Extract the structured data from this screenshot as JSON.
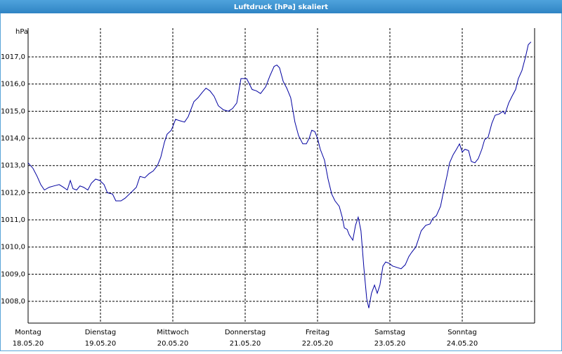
{
  "chart_data": {
    "type": "line",
    "title": "Luftdruck [hPa] skaliert",
    "y_label": "hPa",
    "x": [
      0,
      1.6,
      3.0,
      4.2,
      5.4,
      7.0,
      8.6,
      10.3,
      11.7,
      13.0,
      14.0,
      14.9,
      16.1,
      17.2,
      18.4,
      19.8,
      21.0,
      22.4,
      23.8,
      25.2,
      26.3,
      28.0,
      29.1,
      30.8,
      32.2,
      33.6,
      35.0,
      35.9,
      37.1,
      38.7,
      40.1,
      41.5,
      42.9,
      44.0,
      45.2,
      46.1,
      47.5,
      48.9,
      50.3,
      51.9,
      53.1,
      55.0,
      56.4,
      57.8,
      59.0,
      60.3,
      61.7,
      63.1,
      64.8,
      66.4,
      67.8,
      69.2,
      70.6,
      72.5,
      74.3,
      75.7,
      77.1,
      78.8,
      80.2,
      81.6,
      82.5,
      83.4,
      84.6,
      85.8,
      87.1,
      88.5,
      89.7,
      91.1,
      92.3,
      93.2,
      94.1,
      95.1,
      96.0,
      96.9,
      98.3,
      99.5,
      100.7,
      101.8,
      103.2,
      104.2,
      104.9,
      105.8,
      106.5,
      107.7,
      108.6,
      109.5,
      110.4,
      111.4,
      112.3,
      113.0,
      113.9,
      114.9,
      115.8,
      116.7,
      117.7,
      118.6,
      119.8,
      120.9,
      122.3,
      123.7,
      125.1,
      126.3,
      127.2,
      128.6,
      129.5,
      130.4,
      131.9,
      133.3,
      134.2,
      135.4,
      136.8,
      137.9,
      138.9,
      139.8,
      141.0,
      142.1,
      143.1,
      144.0,
      144.9,
      146.1,
      147.0,
      148.2,
      149.3,
      150.5,
      151.4,
      152.6,
      153.8,
      154.9,
      156.3,
      157.5,
      158.2,
      159.4,
      160.5,
      161.7,
      162.6,
      163.8,
      165.0,
      165.9,
      166.8
    ],
    "values": [
      1013.1,
      1012.9,
      1012.6,
      1012.3,
      1012.1,
      1012.2,
      1012.25,
      1012.3,
      1012.2,
      1012.1,
      1012.45,
      1012.15,
      1012.1,
      1012.25,
      1012.2,
      1012.1,
      1012.35,
      1012.5,
      1012.45,
      1012.3,
      1012.0,
      1011.95,
      1011.7,
      1011.7,
      1011.8,
      1011.95,
      1012.1,
      1012.2,
      1012.6,
      1012.55,
      1012.7,
      1012.8,
      1013.0,
      1013.3,
      1013.85,
      1014.15,
      1014.3,
      1014.7,
      1014.65,
      1014.6,
      1014.8,
      1015.35,
      1015.5,
      1015.7,
      1015.85,
      1015.75,
      1015.55,
      1015.2,
      1015.05,
      1015.0,
      1015.1,
      1015.3,
      1016.2,
      1016.2,
      1015.8,
      1015.75,
      1015.65,
      1015.9,
      1016.3,
      1016.65,
      1016.7,
      1016.6,
      1016.1,
      1015.85,
      1015.5,
      1014.6,
      1014.1,
      1013.8,
      1013.8,
      1014.0,
      1014.3,
      1014.25,
      1014.0,
      1013.6,
      1013.2,
      1012.5,
      1011.95,
      1011.7,
      1011.5,
      1011.1,
      1010.7,
      1010.65,
      1010.45,
      1010.25,
      1010.8,
      1011.1,
      1010.6,
      1009.2,
      1008.1,
      1007.75,
      1008.3,
      1008.6,
      1008.3,
      1008.6,
      1009.3,
      1009.45,
      1009.4,
      1009.3,
      1009.25,
      1009.2,
      1009.35,
      1009.65,
      1009.8,
      1010.0,
      1010.3,
      1010.6,
      1010.8,
      1010.85,
      1011.05,
      1011.15,
      1011.5,
      1012.1,
      1012.6,
      1013.1,
      1013.4,
      1013.6,
      1013.8,
      1013.5,
      1013.6,
      1013.55,
      1013.15,
      1013.1,
      1013.25,
      1013.6,
      1013.95,
      1014.05,
      1014.55,
      1014.85,
      1014.9,
      1015.0,
      1014.9,
      1015.3,
      1015.55,
      1015.8,
      1016.2,
      1016.5,
      1017.0,
      1017.45,
      1017.55
    ],
    "color": "#0000a0",
    "xlim": [
      0,
      168
    ],
    "xticks": [
      {
        "value": 0,
        "label": "Montag"
      },
      {
        "value": 24,
        "label": "Dienstag"
      },
      {
        "value": 48,
        "label": "Mittwoch"
      },
      {
        "value": 72,
        "label": "Donnerstag"
      },
      {
        "value": 96,
        "label": "Freitag"
      },
      {
        "value": 120,
        "label": "Samstag"
      },
      {
        "value": 144,
        "label": "Sonntag"
      }
    ],
    "xtick_dates": [
      "18.05.20",
      "19.05.20",
      "20.05.20",
      "21.05.20",
      "22.05.20",
      "23.05.20",
      "24.05.20"
    ],
    "ylim": [
      1007.2,
      1018.06
    ],
    "yticks": [
      {
        "value": 1008,
        "label": "1008,0"
      },
      {
        "value": 1009,
        "label": "1009,0"
      },
      {
        "value": 1010,
        "label": "1010,0"
      },
      {
        "value": 1011,
        "label": "1011,0"
      },
      {
        "value": 1012,
        "label": "1012,0"
      },
      {
        "value": 1013,
        "label": "1013,0"
      },
      {
        "value": 1014,
        "label": "1014,0"
      },
      {
        "value": 1015,
        "label": "1015,0"
      },
      {
        "value": 1016,
        "label": "1016,0"
      },
      {
        "value": 1017,
        "label": "1017,0"
      }
    ],
    "grid": true
  }
}
